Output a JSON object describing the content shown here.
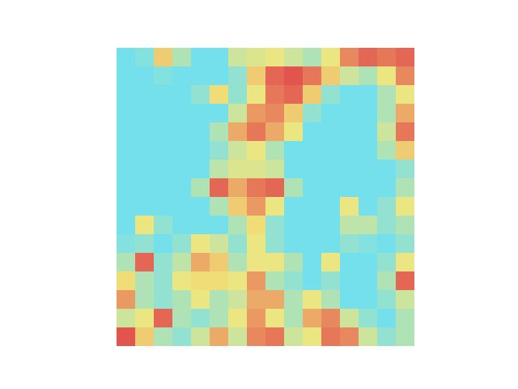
{
  "chart_data": {
    "type": "heatmap",
    "tick_labels": false,
    "colors": [
      "#74e0ec",
      "#f2e67a",
      "#e2554f"
    ],
    "cells": [
      [
        0.1,
        0.15,
        0.6,
        0.3,
        0.1,
        0.1,
        0.4,
        0.45,
        0.5,
        0.4,
        0.3,
        0.5,
        0.8,
        0.9,
        0.85,
        0.9
      ],
      [
        0.1,
        0.1,
        0.15,
        0.1,
        0.1,
        0.1,
        0.2,
        0.6,
        0.9,
        0.95,
        0.85,
        0.6,
        0.4,
        0.3,
        0.5,
        0.8
      ],
      [
        0.1,
        0.1,
        0.1,
        0.1,
        0.2,
        0.55,
        0.2,
        0.5,
        0.85,
        0.9,
        0.6,
        0.2,
        0.1,
        0.1,
        0.3,
        0.5
      ],
      [
        0.1,
        0.1,
        0.1,
        0.1,
        0.1,
        0.1,
        0.4,
        0.75,
        0.8,
        0.6,
        0.2,
        0.1,
        0.1,
        0.1,
        0.3,
        0.7
      ],
      [
        0.1,
        0.1,
        0.1,
        0.1,
        0.1,
        0.3,
        0.7,
        0.85,
        0.7,
        0.5,
        0.1,
        0.1,
        0.1,
        0.1,
        0.4,
        0.85
      ],
      [
        0.1,
        0.1,
        0.1,
        0.1,
        0.1,
        0.2,
        0.4,
        0.5,
        0.3,
        0.1,
        0.1,
        0.1,
        0.1,
        0.1,
        0.3,
        0.6
      ],
      [
        0.1,
        0.1,
        0.1,
        0.1,
        0.1,
        0.35,
        0.45,
        0.45,
        0.4,
        0.1,
        0.1,
        0.1,
        0.1,
        0.1,
        0.1,
        0.2
      ],
      [
        0.1,
        0.1,
        0.1,
        0.1,
        0.3,
        0.9,
        0.7,
        0.85,
        0.9,
        0.3,
        0.1,
        0.1,
        0.1,
        0.1,
        0.1,
        0.3
      ],
      [
        0.1,
        0.1,
        0.1,
        0.1,
        0.1,
        0.3,
        0.6,
        0.75,
        0.5,
        0.1,
        0.1,
        0.1,
        0.5,
        0.1,
        0.2,
        0.5
      ],
      [
        0.1,
        0.5,
        0.2,
        0.1,
        0.1,
        0.1,
        0.3,
        0.55,
        0.2,
        0.1,
        0.1,
        0.1,
        0.35,
        0.35,
        0.2,
        0.3
      ],
      [
        0.15,
        0.2,
        0.1,
        0.2,
        0.5,
        0.4,
        0.2,
        0.5,
        0.2,
        0.1,
        0.1,
        0.1,
        0.2,
        0.15,
        0.1,
        0.2
      ],
      [
        0.3,
        0.9,
        0.2,
        0.35,
        0.7,
        0.6,
        0.3,
        0.5,
        0.5,
        0.3,
        0.1,
        0.5,
        0.1,
        0.1,
        0.2,
        0.5
      ],
      [
        0.55,
        0.3,
        0.2,
        0.5,
        0.55,
        0.55,
        0.5,
        0.75,
        0.3,
        0.2,
        0.1,
        0.2,
        0.1,
        0.1,
        0.3,
        0.9
      ],
      [
        0.75,
        0.3,
        0.2,
        0.3,
        0.5,
        0.3,
        0.4,
        0.7,
        0.7,
        0.3,
        0.5,
        0.3,
        0.1,
        0.1,
        0.2,
        0.4
      ],
      [
        0.4,
        0.5,
        0.9,
        0.3,
        0.2,
        0.3,
        0.5,
        0.75,
        0.5,
        0.3,
        0.7,
        0.8,
        0.4,
        0.2,
        0.1,
        0.3
      ],
      [
        0.95,
        0.6,
        0.3,
        0.2,
        0.4,
        0.7,
        0.4,
        0.8,
        0.85,
        0.4,
        0.5,
        0.85,
        0.8,
        0.4,
        0.2,
        0.3
      ]
    ]
  }
}
